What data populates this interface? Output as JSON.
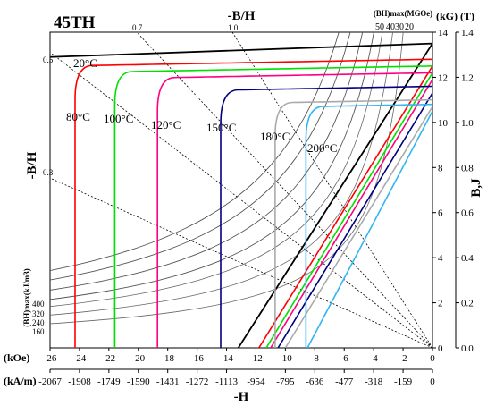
{
  "chart_data": {
    "type": "line",
    "title": "45TH",
    "top_axis_label": "-B/H",
    "left_axis_label": "-B/H",
    "right_axis_label": "B,J",
    "bottom_axis_label": "-H",
    "unit_kOe": "(kOe)",
    "unit_kAm": "(kA/m)",
    "unit_kG": "(kG)",
    "unit_T": "(T)",
    "bhmax_top_label": "(BH)max(MGOe)",
    "bhmax_left_label": "(BH)max(kJ/m3)",
    "x_kOe_ticks": [
      "-26",
      "-24",
      "-22",
      "-20",
      "-18",
      "-16",
      "-14",
      "-12",
      "-10",
      "-8",
      "-6",
      "-4",
      "-2",
      "0"
    ],
    "x_kAm_ticks": [
      "-2067",
      "-1908",
      "-1749",
      "-1590",
      "-1431",
      "-1272",
      "-1113",
      "-954",
      "-795",
      "-636",
      "-477",
      "-318",
      "-159",
      "0"
    ],
    "kG_ticks": [
      "0",
      "2",
      "4",
      "6",
      "8",
      "10",
      "12",
      "14"
    ],
    "T_ticks": [
      "0.0",
      "0.2",
      "0.4",
      "0.6",
      "0.8",
      "1.0",
      "1.2",
      "1.4"
    ],
    "xlim_kOe": [
      -26,
      0
    ],
    "ylim_kG": [
      0,
      14
    ],
    "bh_lines": [
      {
        "label": "0.5",
        "ratio": 0.5
      },
      {
        "label": "0.7",
        "ratio": 0.7
      },
      {
        "label": "1.0",
        "ratio": 1.0
      },
      {
        "label": "0.3",
        "ratio": 0.3
      }
    ],
    "energy_top_labels": [
      "50",
      "40",
      "30",
      "20"
    ],
    "energy_left_labels": [
      "400",
      "320",
      "240",
      "160"
    ],
    "curves": [
      {
        "temp": "20°C",
        "color": "#000000",
        "Br_kG": 13.5,
        "Hcj_kOe": 26,
        "Hcb_kOe": 13.2
      },
      {
        "temp": "80°C",
        "color": "#ff0000",
        "Br_kG": 12.8,
        "Hcj_kOe": 24.3,
        "Hcb_kOe": 11.8
      },
      {
        "temp": "100°C",
        "color": "#00e000",
        "Br_kG": 12.5,
        "Hcj_kOe": 21.6,
        "Hcb_kOe": 11.3
      },
      {
        "temp": "120°C",
        "color": "#ff0080",
        "Br_kG": 12.2,
        "Hcj_kOe": 18.7,
        "Hcb_kOe": 11.0
      },
      {
        "temp": "150°C",
        "color": "#000080",
        "Br_kG": 11.6,
        "Hcj_kOe": 14.4,
        "Hcb_kOe": 10.5
      },
      {
        "temp": "180°C",
        "color": "#aaaaaa",
        "Br_kG": 11.0,
        "Hcj_kOe": 10.7,
        "Hcb_kOe": 10.0
      },
      {
        "temp": "200°C",
        "color": "#33b5f0",
        "Br_kG": 10.8,
        "Hcj_kOe": 8.6,
        "Hcb_kOe": 8.5
      }
    ]
  }
}
